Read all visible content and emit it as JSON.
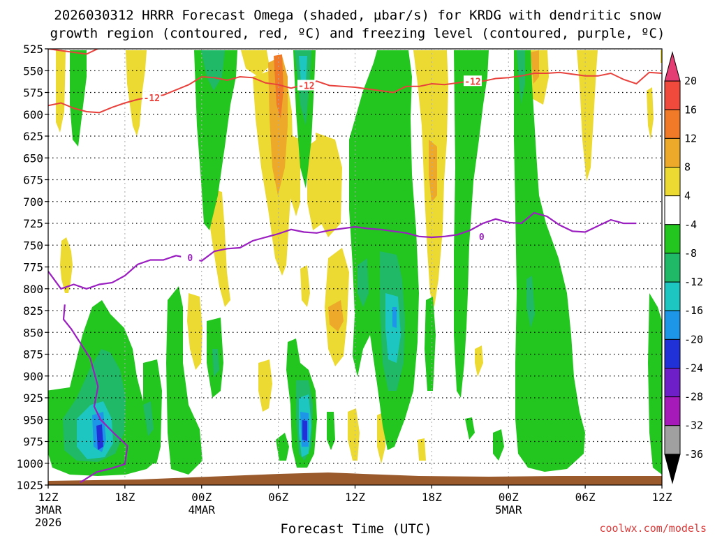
{
  "chart_data": {
    "type": "contour",
    "title_line1": "2026030312 HRRR Forecast Omega (shaded, µbar/s) for KRDG with dendritic snow",
    "title_line2": "growth region (contoured, red, ºC) and freezing level (contoured, purple, ºC)",
    "xlabel": "Forecast Time (UTC)",
    "credit": "coolwx.com/models",
    "y_axis": {
      "unit": "hPa",
      "range": [
        525,
        1025
      ],
      "ticks": [
        "525",
        "550",
        "575",
        "600",
        "625",
        "650",
        "675",
        "700",
        "725",
        "750",
        "775",
        "800",
        "825",
        "850",
        "875",
        "900",
        "925",
        "950",
        "975",
        "1000",
        "1025"
      ]
    },
    "x_axis": {
      "range_hours": [
        0,
        48
      ],
      "ticks": [
        {
          "hour": 0,
          "line1": "12Z",
          "line2": "3MAR",
          "line3": "2026"
        },
        {
          "hour": 6,
          "line1": "18Z",
          "line2": "",
          "line3": ""
        },
        {
          "hour": 12,
          "line1": "00Z",
          "line2": "4MAR",
          "line3": ""
        },
        {
          "hour": 18,
          "line1": "06Z",
          "line2": "",
          "line3": ""
        },
        {
          "hour": 24,
          "line1": "12Z",
          "line2": "",
          "line3": ""
        },
        {
          "hour": 30,
          "line1": "18Z",
          "line2": "",
          "line3": ""
        },
        {
          "hour": 36,
          "line1": "00Z",
          "line2": "5MAR",
          "line3": ""
        },
        {
          "hour": 42,
          "line1": "06Z",
          "line2": "",
          "line3": ""
        },
        {
          "hour": 48,
          "line1": "12Z",
          "line2": "",
          "line3": ""
        }
      ]
    },
    "colorbar": {
      "labels": [
        "20",
        "16",
        "12",
        "8",
        "4",
        "-4",
        "-8",
        "-12",
        "-16",
        "-20",
        "-24",
        "-28",
        "-32",
        "-36"
      ],
      "bins": [
        {
          "color": "#e43d74"
        },
        {
          "color": "#f04a3c"
        },
        {
          "color": "#f07a27"
        },
        {
          "color": "#eca92a"
        },
        {
          "color": "#ecd932"
        },
        {
          "color": "#ffffff"
        },
        {
          "color": "#22c61e"
        },
        {
          "color": "#1fb968"
        },
        {
          "color": "#1dc6c0"
        },
        {
          "color": "#1e96e8"
        },
        {
          "color": "#2131d8"
        },
        {
          "color": "#6e1fc8"
        },
        {
          "color": "#a51ab8"
        },
        {
          "color": "#a0a0a0"
        },
        {
          "color": "#000000"
        }
      ]
    },
    "freezing_level": {
      "label": "0",
      "color": "#9a1ec0",
      "points": [
        [
          0,
          780
        ],
        [
          1,
          800
        ],
        [
          2,
          795
        ],
        [
          3,
          800
        ],
        [
          4,
          795
        ],
        [
          5,
          793
        ],
        [
          6,
          785
        ],
        [
          7,
          772
        ],
        [
          8,
          767
        ],
        [
          9,
          767
        ],
        [
          10,
          762
        ],
        [
          11,
          765
        ],
        [
          12,
          768
        ],
        [
          13,
          757
        ],
        [
          14,
          754
        ],
        [
          15,
          753
        ],
        [
          16,
          745
        ],
        [
          17,
          741
        ],
        [
          18,
          737
        ],
        [
          19,
          732
        ],
        [
          20,
          735
        ],
        [
          21,
          736
        ],
        [
          22,
          733
        ],
        [
          23,
          731
        ],
        [
          24,
          729
        ],
        [
          25,
          731
        ],
        [
          26,
          732
        ],
        [
          27,
          734
        ],
        [
          28,
          736
        ],
        [
          29,
          740
        ],
        [
          30,
          741
        ],
        [
          31,
          740
        ],
        [
          32,
          738
        ],
        [
          33,
          733
        ],
        [
          34,
          725
        ],
        [
          35,
          720
        ],
        [
          36,
          724
        ],
        [
          37,
          725
        ],
        [
          38,
          713
        ],
        [
          39,
          717
        ],
        [
          40,
          727
        ],
        [
          41,
          734
        ],
        [
          42,
          735
        ],
        [
          43,
          728
        ],
        [
          44,
          721
        ],
        [
          45,
          725
        ],
        [
          46,
          725
        ]
      ]
    },
    "dgz_contour": {
      "label": "-12",
      "color": "#e8413c",
      "points": [
        [
          0,
          590
        ],
        [
          1,
          587
        ],
        [
          2,
          593
        ],
        [
          3,
          597
        ],
        [
          4,
          598
        ],
        [
          5,
          592
        ],
        [
          6,
          587
        ],
        [
          7,
          583
        ],
        [
          8,
          580
        ],
        [
          9,
          578
        ],
        [
          10,
          572
        ],
        [
          11,
          566
        ],
        [
          12,
          557
        ],
        [
          13,
          558
        ],
        [
          14,
          561
        ],
        [
          15,
          557
        ],
        [
          16,
          558
        ],
        [
          17,
          564
        ],
        [
          18,
          566
        ],
        [
          19,
          570
        ],
        [
          20,
          566
        ],
        [
          21,
          562
        ],
        [
          22,
          567
        ],
        [
          23,
          568
        ],
        [
          24,
          569
        ],
        [
          25,
          571
        ],
        [
          26,
          573
        ],
        [
          27,
          575
        ],
        [
          28,
          568
        ],
        [
          29,
          568
        ],
        [
          30,
          565
        ],
        [
          31,
          566
        ],
        [
          32,
          564
        ],
        [
          33,
          562
        ],
        [
          34,
          562
        ],
        [
          35,
          559
        ],
        [
          36,
          558
        ],
        [
          37,
          556
        ],
        [
          38,
          553
        ],
        [
          39,
          553
        ],
        [
          40,
          552
        ],
        [
          41,
          554
        ],
        [
          42,
          556
        ],
        [
          43,
          556
        ],
        [
          44,
          553
        ],
        [
          45,
          560
        ],
        [
          46,
          565
        ],
        [
          47,
          552
        ],
        [
          48,
          553
        ]
      ]
    }
  }
}
